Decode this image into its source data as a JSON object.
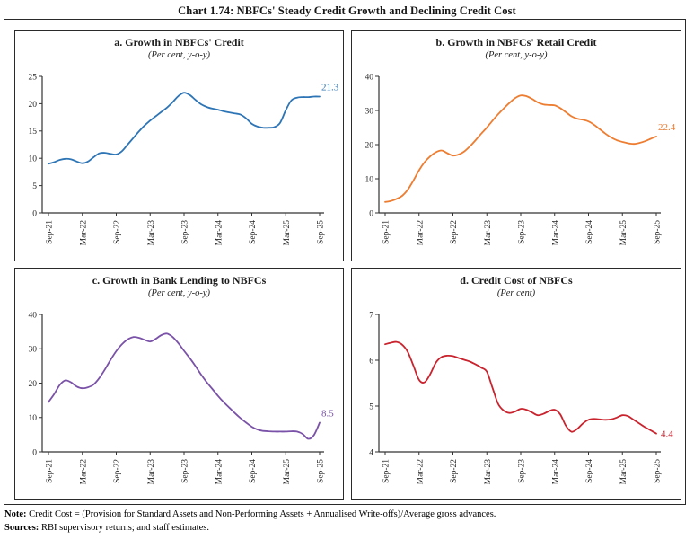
{
  "header": {
    "title": "Chart 1.74: NBFCs' Steady Credit Growth and Declining Credit Cost"
  },
  "footer": {
    "note_label": "Note:",
    "note_text": " Credit Cost = (Provision for Standard Assets and Non-Performing Assets + Annualised Write-offs)/Average gross advances.",
    "sources_label": "Sources:",
    "sources_text": " RBI supervisory returns; and staff estimates."
  },
  "chart_data": [
    {
      "type": "line",
      "title": "a. Growth in NBFCs' Credit",
      "subtitle": "(Per cent, y-o-y)",
      "frequency": "monthly",
      "x_start": "Sep-21",
      "x_end": "Sep-25",
      "x_months_span": 48,
      "x_tick_labels": [
        "Sep-21",
        "Mar-22",
        "Sep-22",
        "Mar-23",
        "Sep-23",
        "Mar-24",
        "Sep-24",
        "Mar-25",
        "Sep-25"
      ],
      "ylim": [
        0,
        25
      ],
      "yticks": [
        0,
        5,
        10,
        15,
        20,
        25
      ],
      "grid": false,
      "legend": "none",
      "color": "#2E75B6",
      "end_label": "21.3",
      "end_label_pos": "above",
      "values_monthly": [
        9.0,
        9.3,
        9.7,
        9.9,
        9.8,
        9.4,
        9.1,
        9.4,
        10.2,
        10.9,
        11.0,
        10.8,
        10.7,
        11.3,
        12.5,
        13.7,
        14.9,
        16.0,
        16.9,
        17.7,
        18.5,
        19.3,
        20.3,
        21.4,
        22.0,
        21.6,
        20.7,
        19.9,
        19.4,
        19.1,
        18.9,
        18.6,
        18.4,
        18.2,
        18.0,
        17.3,
        16.3,
        15.8,
        15.6,
        15.6,
        15.7,
        16.5,
        18.8,
        20.6,
        21.1,
        21.2,
        21.2,
        21.3,
        21.3
      ]
    },
    {
      "type": "line",
      "title": "b. Growth in NBFCs' Retail Credit",
      "subtitle": "(Per cent, y-o-y)",
      "frequency": "monthly",
      "x_start": "Sep-21",
      "x_end": "Sep-25",
      "x_months_span": 48,
      "x_tick_labels": [
        "Sep-21",
        "Mar-22",
        "Sep-22",
        "Mar-23",
        "Sep-23",
        "Mar-24",
        "Sep-24",
        "Mar-25",
        "Sep-25"
      ],
      "ylim": [
        0,
        40
      ],
      "yticks": [
        0,
        10,
        20,
        30,
        40
      ],
      "grid": false,
      "legend": "none",
      "color": "#ED7D31",
      "end_label": "22.4",
      "end_label_pos": "above",
      "values_monthly": [
        3.2,
        3.5,
        4.1,
        5.0,
        6.8,
        9.5,
        12.5,
        14.9,
        16.6,
        17.8,
        18.3,
        17.5,
        16.8,
        17.1,
        18.0,
        19.5,
        21.3,
        23.2,
        25.0,
        27.0,
        28.9,
        30.6,
        32.2,
        33.6,
        34.4,
        34.2,
        33.4,
        32.4,
        31.8,
        31.6,
        31.5,
        30.7,
        29.5,
        28.3,
        27.6,
        27.3,
        26.8,
        25.8,
        24.5,
        23.2,
        22.1,
        21.3,
        20.8,
        20.4,
        20.2,
        20.5,
        21.0,
        21.7,
        22.4
      ]
    },
    {
      "type": "line",
      "title": "c. Growth in Bank Lending to NBFCs",
      "subtitle": "(Per cent, y-o-y)",
      "frequency": "monthly",
      "x_start": "Sep-21",
      "x_end": "Sep-25",
      "x_months_span": 48,
      "x_tick_labels": [
        "Sep-21",
        "Mar-22",
        "Sep-22",
        "Mar-23",
        "Sep-23",
        "Mar-24",
        "Sep-24",
        "Mar-25",
        "Sep-25"
      ],
      "ylim": [
        0,
        40
      ],
      "yticks": [
        0,
        10,
        20,
        30,
        40
      ],
      "grid": false,
      "legend": "none",
      "color": "#7A52A8",
      "end_label": "8.5",
      "end_label_pos": "above",
      "values_monthly": [
        14.5,
        16.8,
        19.5,
        20.8,
        20.2,
        19.0,
        18.5,
        18.8,
        19.6,
        21.5,
        24.0,
        26.8,
        29.3,
        31.3,
        32.7,
        33.4,
        33.2,
        32.6,
        32.1,
        32.9,
        34.0,
        34.4,
        33.4,
        31.6,
        29.4,
        27.3,
        25.0,
        22.5,
        20.3,
        18.3,
        16.3,
        14.5,
        12.9,
        11.3,
        9.8,
        8.5,
        7.3,
        6.5,
        6.1,
        6.0,
        5.9,
        5.9,
        5.9,
        6.0,
        5.9,
        5.2,
        3.8,
        4.9,
        8.5
      ]
    },
    {
      "type": "line",
      "title": "d. Credit Cost of NBFCs",
      "subtitle": "(Per cent)",
      "frequency": "monthly",
      "x_start": "Sep-21",
      "x_end": "Sep-25",
      "x_months_span": 48,
      "x_tick_labels": [
        "Sep-21",
        "Mar-22",
        "Sep-22",
        "Mar-23",
        "Sep-23",
        "Mar-24",
        "Sep-24",
        "Mar-25",
        "Sep-25"
      ],
      "ylim": [
        4,
        7
      ],
      "yticks": [
        4,
        5,
        6,
        7
      ],
      "grid": false,
      "legend": "none",
      "color": "#C9232E",
      "end_label": "4.4",
      "end_label_pos": "right",
      "values_monthly": [
        6.35,
        6.38,
        6.4,
        6.34,
        6.18,
        5.88,
        5.57,
        5.52,
        5.7,
        5.95,
        6.07,
        6.1,
        6.09,
        6.05,
        6.01,
        5.97,
        5.91,
        5.84,
        5.75,
        5.4,
        5.05,
        4.9,
        4.85,
        4.88,
        4.94,
        4.92,
        4.86,
        4.8,
        4.83,
        4.89,
        4.92,
        4.82,
        4.57,
        4.44,
        4.5,
        4.62,
        4.7,
        4.72,
        4.71,
        4.7,
        4.71,
        4.75,
        4.8,
        4.78,
        4.7,
        4.62,
        4.54,
        4.47,
        4.4
      ]
    }
  ]
}
